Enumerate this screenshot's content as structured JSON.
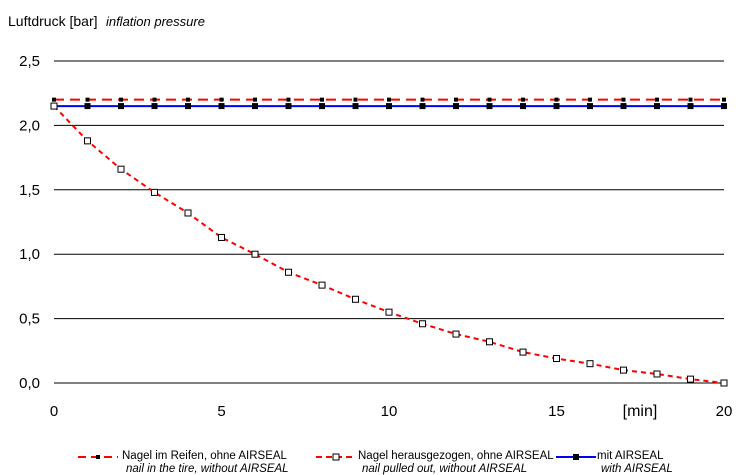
{
  "chart_data": {
    "type": "line",
    "title": "Luftdruck [bar]",
    "subtitle": "inflation pressure",
    "x_unit_label": "[min]",
    "xlim": [
      0,
      20
    ],
    "ylim": [
      0,
      2.5
    ],
    "x_ticks": [
      0,
      5,
      10,
      15,
      20
    ],
    "x_tick_labels": [
      "0",
      "5",
      "10",
      "15",
      "20"
    ],
    "y_ticks": [
      0,
      0.5,
      1.0,
      1.5,
      2.0,
      2.5
    ],
    "y_tick_labels": [
      "0,0",
      "0,5",
      "1,0",
      "1,5",
      "2,0",
      "2,5"
    ],
    "grid": "horizontal",
    "legend_position": "bottom",
    "x": [
      0,
      1,
      2,
      3,
      4,
      5,
      6,
      7,
      8,
      9,
      10,
      11,
      12,
      13,
      14,
      15,
      16,
      17,
      18,
      19,
      20
    ],
    "series": [
      {
        "name": "Nagel im Reifen, ohne AIRSEAL",
        "name_en": "nail in the tire, without AIRSEAL",
        "color": "#ff0000",
        "line_style": "dashed",
        "marker": "small-filled-square",
        "values": [
          2.2,
          2.2,
          2.2,
          2.2,
          2.2,
          2.2,
          2.2,
          2.2,
          2.2,
          2.2,
          2.2,
          2.2,
          2.2,
          2.2,
          2.2,
          2.2,
          2.2,
          2.2,
          2.2,
          2.2,
          2.2
        ]
      },
      {
        "name": "Nagel herausgezogen, ohne AIRSEAL",
        "name_en": "nail pulled out, without AIRSEAL",
        "color": "#ff0000",
        "line_style": "dashed",
        "marker": "open-square",
        "values": [
          2.15,
          1.88,
          1.66,
          1.48,
          1.32,
          1.13,
          1.0,
          0.86,
          0.76,
          0.65,
          0.55,
          0.46,
          0.38,
          0.32,
          0.24,
          0.19,
          0.15,
          0.1,
          0.07,
          0.03,
          0.0
        ]
      },
      {
        "name": "mit AIRSEAL",
        "name_en": "with AIRSEAL",
        "color": "#0000ff",
        "line_style": "solid",
        "marker": "filled-square",
        "values": [
          2.15,
          2.15,
          2.15,
          2.15,
          2.15,
          2.15,
          2.15,
          2.15,
          2.15,
          2.15,
          2.15,
          2.15,
          2.15,
          2.15,
          2.15,
          2.15,
          2.15,
          2.15,
          2.15,
          2.15,
          2.15
        ]
      }
    ]
  }
}
